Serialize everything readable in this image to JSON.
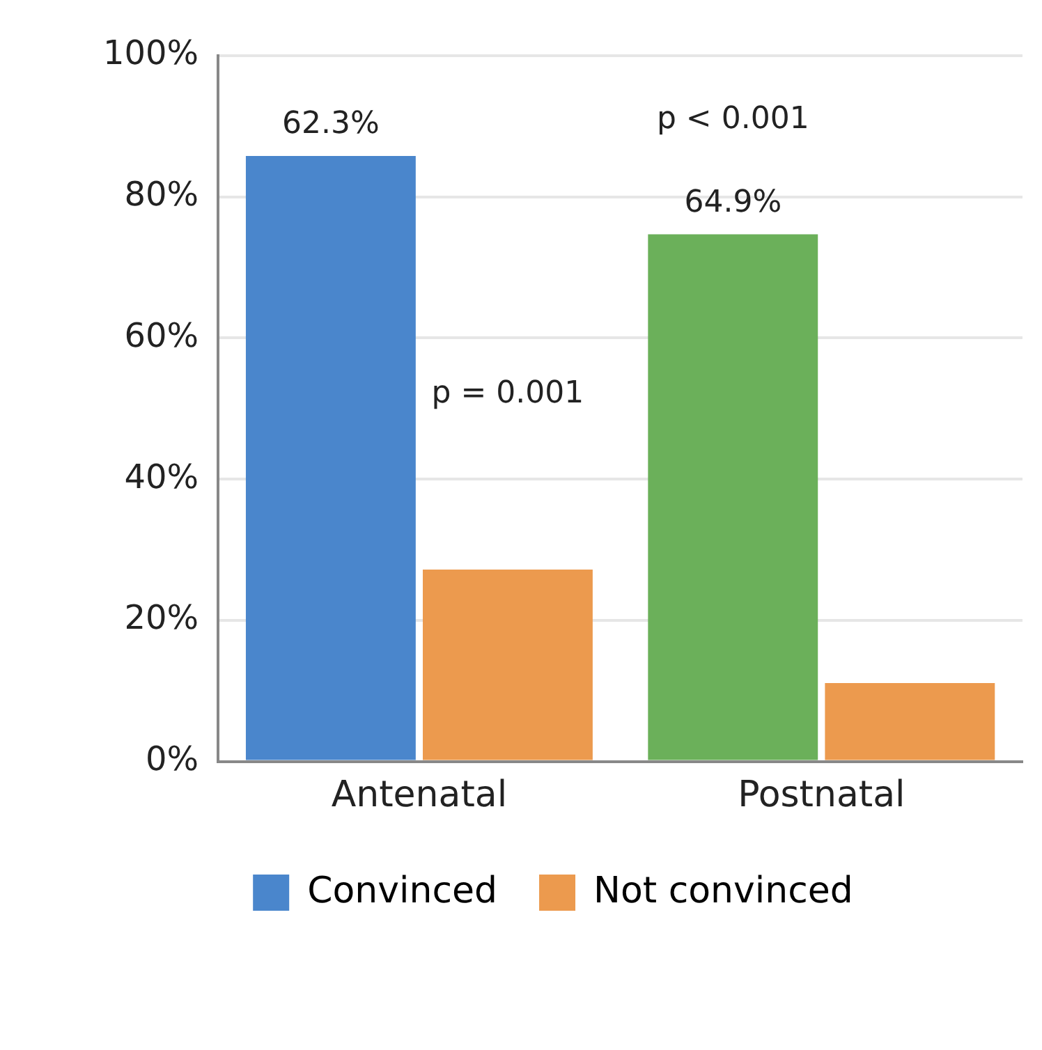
{
  "chart_data": {
    "type": "bar",
    "categories": [
      "Antenatal",
      "Postnatal"
    ],
    "series": [
      {
        "name": "Convinced",
        "color": "#4a86cc",
        "colors": [
          "#4a86cc",
          "#6bb05a"
        ],
        "values": [
          85.8,
          74.7
        ]
      },
      {
        "name": "Not convinced",
        "color": "#ec9a4e",
        "values": [
          27.2,
          11.1
        ]
      }
    ],
    "ylim": [
      0,
      100
    ],
    "yticks": [
      {
        "value": 0,
        "label": "0%"
      },
      {
        "value": 20,
        "label": "20%"
      },
      {
        "value": 40,
        "label": "40%"
      },
      {
        "value": 60,
        "label": "60%"
      },
      {
        "value": 80,
        "label": "80%"
      },
      {
        "value": 100,
        "label": "100%"
      }
    ],
    "grid": "y",
    "legend": "bottom",
    "annotations": [
      "62.3%",
      "64.9%",
      "p < 0.001",
      {
        "text": "p = 0.001",
        "x": "Antenatal",
        "y": 52
      }
    ]
  }
}
